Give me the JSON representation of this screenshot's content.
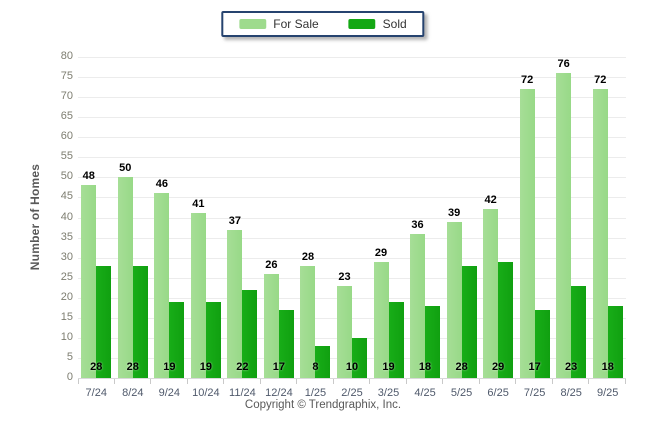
{
  "chart_data": {
    "type": "bar",
    "title": "",
    "categories": [
      "7/24",
      "8/24",
      "9/24",
      "10/24",
      "11/24",
      "12/24",
      "1/25",
      "2/25",
      "3/25",
      "4/25",
      "5/25",
      "6/25",
      "7/25",
      "8/25",
      "9/25"
    ],
    "series": [
      {
        "name": "For Sale",
        "color": "#9edb8d",
        "values": [
          48,
          50,
          46,
          41,
          37,
          26,
          28,
          23,
          29,
          36,
          39,
          42,
          72,
          76,
          72
        ]
      },
      {
        "name": "Sold",
        "color": "#14a814",
        "values": [
          28,
          28,
          19,
          19,
          22,
          17,
          8,
          10,
          19,
          18,
          28,
          29,
          17,
          23,
          18
        ]
      }
    ],
    "xlabel": "",
    "ylabel": "Number of Homes",
    "ylim": [
      0,
      80
    ],
    "ytick_step": 5,
    "ytick_labels": [
      "0",
      "5",
      "10",
      "15",
      "20",
      "25",
      "30",
      "35",
      "40",
      "45",
      "50",
      "55",
      "60",
      "65",
      "70",
      "75",
      "80"
    ],
    "grid": true,
    "legend_position": "top-center",
    "value_labels": {
      "for_sale": "above bar",
      "sold": "inside bar bottom"
    }
  },
  "legend": {
    "items": [
      {
        "label": "For Sale",
        "color": "#9edb8d"
      },
      {
        "label": "Sold",
        "color": "#14a814"
      }
    ]
  },
  "axis": {
    "y_title": "Number of Homes"
  },
  "footer": {
    "copyright": "Copyright © Trendgraphix, Inc."
  }
}
